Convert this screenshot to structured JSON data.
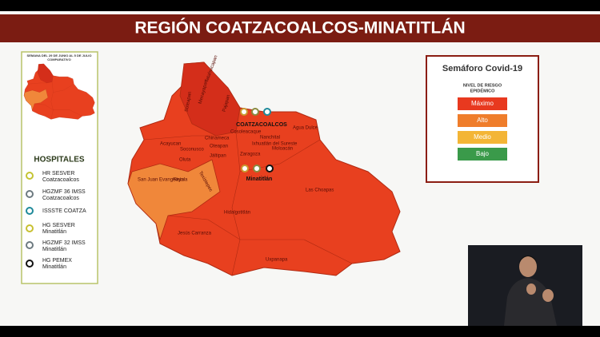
{
  "header": {
    "title": "REGIÓN COATZACOALCOS-MINATITLÁN"
  },
  "inset": {
    "caption": [
      "SEMANA DEL 29 DE JUNIO AL 5 DE JULIO",
      "COMPARATIVO"
    ]
  },
  "hospitals": {
    "title": "HOSPITALES",
    "items": [
      {
        "name": "HR SESVER",
        "place": "Coatzacoalcos"
      },
      {
        "name": "HGZMF 36 IMSS",
        "place": "Coatzacoalcos"
      },
      {
        "name": "ISSSTE COATZA",
        "place": ""
      },
      {
        "name": "HG SESVER",
        "place": "Minatitlán"
      },
      {
        "name": "HGZMF 32 IMSS",
        "place": "Minatitlán"
      },
      {
        "name": "HG PEMEX",
        "place": "Minatitlán"
      }
    ]
  },
  "semaforo": {
    "title": "Semáforo Covid-19",
    "subtitle": [
      "NIVEL DE RIESGO",
      "EPIDÉMICO"
    ],
    "levels": [
      "Máximo",
      "Alto",
      "Medio",
      "Bajo"
    ]
  },
  "map": {
    "labels": [
      "Tatahuicapan",
      "Mecayapan",
      "Pajapan",
      "Soteapan",
      "COATZACOALCOS",
      "Agua Dulce",
      "Chinameca",
      "Acayucan",
      "Soconusco",
      "Oteapan",
      "Jáltipan",
      "Cosoleacaque",
      "Nanchital",
      "Ixhuatlán del Sureste",
      "Moloacán",
      "Oluta",
      "Zaragoza",
      "Sayula",
      "Texistepec",
      "San Juan Evangelista",
      "Minatitlán",
      "Las Choapas",
      "Hidalgotitlán",
      "Jesús Carranza",
      "Uxpanapa"
    ]
  }
}
